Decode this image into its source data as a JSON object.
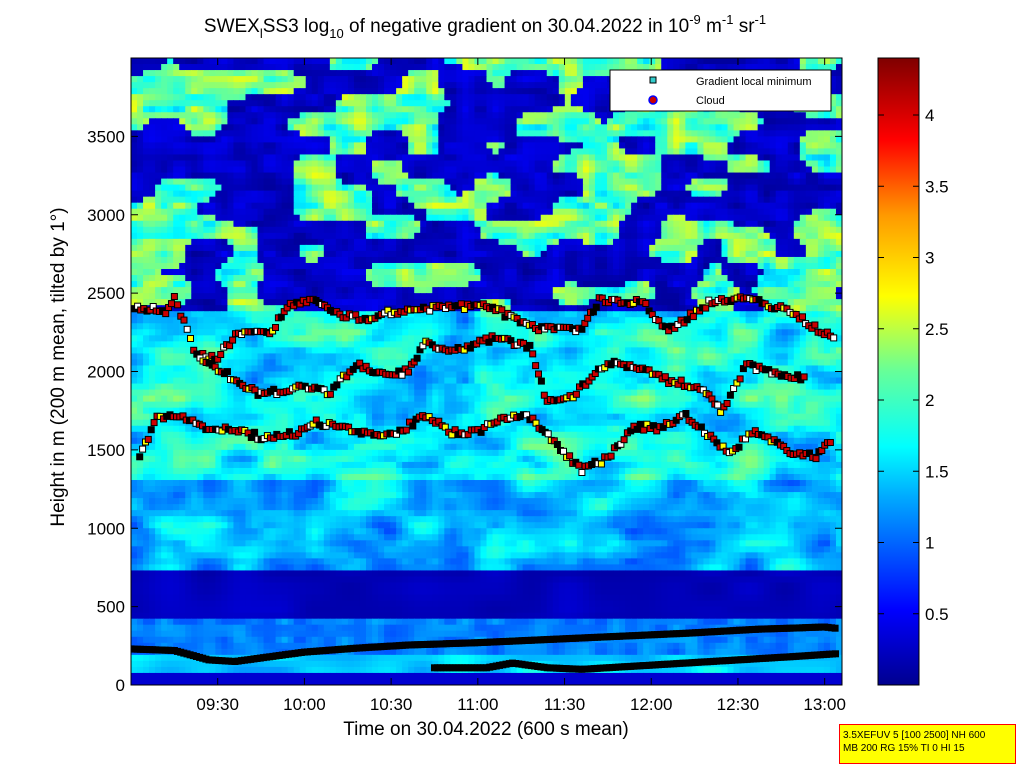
{
  "chart_data": {
    "type": "heatmap",
    "title": {
      "prefix": "SWEX",
      "sub_i": "l",
      "mid": "SS3 log",
      "sub_10": "10",
      "after": " of negative gradient on 30.04.2022 in 10",
      "sup_m9": "-9",
      "unit_m": " m",
      "sup_m1": "-1",
      "unit_sr": " sr",
      "sup_sr": "-1"
    },
    "xlabel": "Time on 30.04.2022 (600 s mean)",
    "ylabel": "Height in m (200 m mean, tilted by 1°)",
    "x_range_hours": [
      9.0,
      13.1
    ],
    "y_range": [
      0,
      4000
    ],
    "x_ticks": [
      {
        "hours": 9.5,
        "label": "09:30"
      },
      {
        "hours": 10.0,
        "label": "10:00"
      },
      {
        "hours": 10.5,
        "label": "10:30"
      },
      {
        "hours": 11.0,
        "label": "11:00"
      },
      {
        "hours": 11.5,
        "label": "11:30"
      },
      {
        "hours": 12.0,
        "label": "12:00"
      },
      {
        "hours": 12.5,
        "label": "12:30"
      },
      {
        "hours": 13.0,
        "label": "13:00"
      }
    ],
    "y_ticks": [
      {
        "value": 0,
        "label": "0"
      },
      {
        "value": 500,
        "label": "500"
      },
      {
        "value": 1000,
        "label": "1000"
      },
      {
        "value": 1500,
        "label": "1500"
      },
      {
        "value": 2000,
        "label": "2000"
      },
      {
        "value": 2500,
        "label": "2500"
      },
      {
        "value": 3000,
        "label": "3000"
      },
      {
        "value": 3500,
        "label": "3500"
      }
    ],
    "colorbar": {
      "range": [
        0,
        4.4
      ],
      "ticks": [
        {
          "value": 0.5,
          "label": "0.5"
        },
        {
          "value": 1.0,
          "label": "1"
        },
        {
          "value": 1.5,
          "label": "1.5"
        },
        {
          "value": 2.0,
          "label": "2"
        },
        {
          "value": 2.5,
          "label": "2.5"
        },
        {
          "value": 3.0,
          "label": "3"
        },
        {
          "value": 3.5,
          "label": "3.5"
        },
        {
          "value": 4.0,
          "label": "4"
        }
      ]
    },
    "legend": {
      "placement": "top-right",
      "entries": [
        {
          "label": "Gradient local minimum",
          "marker": "square",
          "color": "#33cccc"
        },
        {
          "label": "Cloud",
          "marker": "circle",
          "color": "#cc0000",
          "edge": "#0000ff"
        }
      ]
    },
    "cloud_layers": [
      {
        "name": "upper",
        "points": [
          [
            9.02,
            2420
          ],
          [
            9.2,
            2380
          ],
          [
            9.25,
            2480
          ],
          [
            9.38,
            2100
          ],
          [
            9.5,
            2090
          ],
          [
            9.62,
            2250
          ],
          [
            9.8,
            2240
          ],
          [
            9.9,
            2420
          ],
          [
            10.05,
            2450
          ],
          [
            10.15,
            2380
          ],
          [
            10.35,
            2330
          ],
          [
            10.5,
            2380
          ],
          [
            10.65,
            2400
          ],
          [
            11.05,
            2420
          ],
          [
            11.35,
            2270
          ],
          [
            11.6,
            2270
          ],
          [
            11.7,
            2460
          ],
          [
            11.95,
            2440
          ],
          [
            12.1,
            2260
          ],
          [
            12.35,
            2450
          ],
          [
            12.55,
            2460
          ],
          [
            12.8,
            2390
          ],
          [
            12.98,
            2250
          ],
          [
            13.07,
            2230
          ]
        ]
      },
      {
        "name": "middle",
        "points": [
          [
            9.38,
            2100
          ],
          [
            9.75,
            1850
          ],
          [
            9.95,
            1900
          ],
          [
            10.15,
            1870
          ],
          [
            10.3,
            2050
          ],
          [
            10.45,
            1980
          ],
          [
            10.6,
            2000
          ],
          [
            10.7,
            2180
          ],
          [
            10.85,
            2120
          ],
          [
            11.1,
            2220
          ],
          [
            11.3,
            2150
          ],
          [
            11.4,
            1810
          ],
          [
            11.55,
            1850
          ],
          [
            11.75,
            2060
          ],
          [
            11.95,
            2020
          ],
          [
            12.1,
            1940
          ],
          [
            12.3,
            1900
          ],
          [
            12.4,
            1740
          ],
          [
            12.55,
            2040
          ],
          [
            12.75,
            1980
          ],
          [
            12.9,
            1950
          ]
        ]
      },
      {
        "name": "lower",
        "points": [
          [
            9.05,
            1440
          ],
          [
            9.15,
            1720
          ],
          [
            9.3,
            1700
          ],
          [
            9.45,
            1640
          ],
          [
            9.6,
            1630
          ],
          [
            9.75,
            1580
          ],
          [
            9.95,
            1600
          ],
          [
            10.05,
            1680
          ],
          [
            10.2,
            1640
          ],
          [
            10.4,
            1600
          ],
          [
            10.55,
            1620
          ],
          [
            10.7,
            1720
          ],
          [
            10.85,
            1610
          ],
          [
            11.0,
            1620
          ],
          [
            11.15,
            1700
          ],
          [
            11.3,
            1710
          ],
          [
            11.6,
            1370
          ],
          [
            11.75,
            1450
          ],
          [
            11.9,
            1650
          ],
          [
            12.05,
            1640
          ],
          [
            12.2,
            1720
          ],
          [
            12.45,
            1480
          ],
          [
            12.6,
            1630
          ],
          [
            12.8,
            1480
          ],
          [
            12.95,
            1460
          ],
          [
            13.05,
            1560
          ]
        ]
      },
      {
        "name": "boundary",
        "points": [
          [
            9.0,
            230
          ],
          [
            9.25,
            220
          ],
          [
            9.45,
            160
          ],
          [
            9.6,
            150
          ],
          [
            9.8,
            180
          ],
          [
            10.0,
            210
          ],
          [
            10.3,
            235
          ],
          [
            10.6,
            255
          ],
          [
            11.0,
            270
          ],
          [
            11.4,
            290
          ],
          [
            11.8,
            310
          ],
          [
            12.2,
            330
          ],
          [
            12.6,
            355
          ],
          [
            13.0,
            370
          ],
          [
            13.08,
            360
          ]
        ]
      },
      {
        "name": "surface",
        "points": [
          [
            10.75,
            110
          ],
          [
            11.05,
            110
          ],
          [
            11.2,
            140
          ],
          [
            11.4,
            110
          ],
          [
            11.6,
            100
          ],
          [
            11.9,
            120
          ],
          [
            12.2,
            140
          ],
          [
            12.5,
            160
          ],
          [
            12.8,
            180
          ],
          [
            13.08,
            200
          ]
        ]
      }
    ]
  },
  "info_box": {
    "line1": "3.5XEFUV 5 [100 2500] NH 600",
    "line2": "MB 200 RG 15% TI 0 HI 15"
  }
}
